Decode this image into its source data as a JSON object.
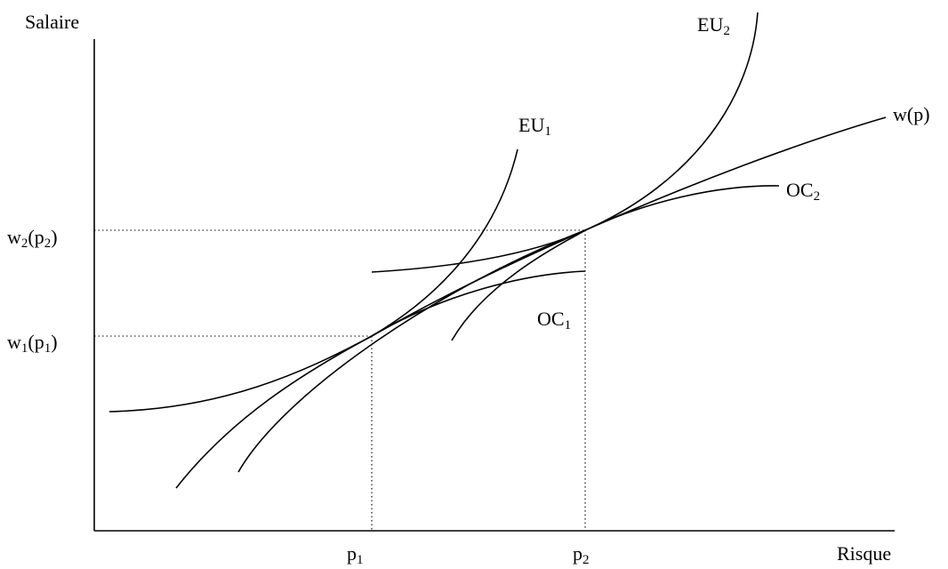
{
  "axes": {
    "y_label": "Salaire",
    "x_label": "Risque"
  },
  "ticks": {
    "x": [
      {
        "base": "p",
        "sub": "1"
      },
      {
        "base": "p",
        "sub": "2"
      }
    ],
    "y": [
      {
        "base": "w",
        "sub": "2",
        "arg_base": "p",
        "arg_sub": "2"
      },
      {
        "base": "w",
        "sub": "1",
        "arg_base": "p",
        "arg_sub": "1"
      }
    ]
  },
  "curves": {
    "eu1": {
      "base": "EU",
      "sub": "1"
    },
    "eu2": {
      "base": "EU",
      "sub": "2"
    },
    "wp": {
      "text": "w(p)"
    },
    "oc1": {
      "base": "OC",
      "sub": "1"
    },
    "oc2": {
      "base": "OC",
      "sub": "2"
    }
  }
}
